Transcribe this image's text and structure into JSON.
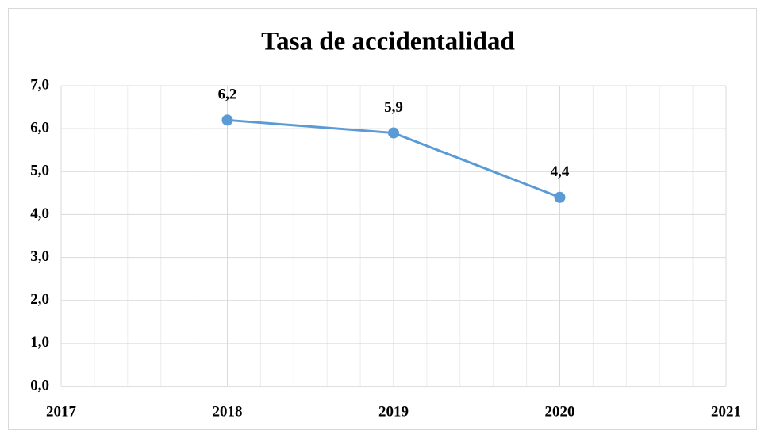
{
  "chart_data": {
    "type": "line",
    "title": "Tasa de accidentalidad",
    "x": [
      2018,
      2019,
      2020
    ],
    "series": [
      {
        "name": "Tasa de accidentalidad",
        "color": "#5b9bd5",
        "values": [
          6.2,
          5.9,
          4.4
        ],
        "value_labels": [
          "6,2",
          "5,9",
          "4,4"
        ]
      }
    ],
    "xlim": [
      2017,
      2021
    ],
    "xticks": [
      2017,
      2018,
      2019,
      2020,
      2021
    ],
    "xminorticks": [
      2017.2,
      2017.4,
      2017.6,
      2017.8,
      2018.2,
      2018.4,
      2018.6,
      2018.8,
      2019.2,
      2019.4,
      2019.6,
      2019.8,
      2020.2,
      2020.4,
      2020.6,
      2020.8
    ],
    "ylim": [
      0,
      7
    ],
    "yticks": [
      {
        "value": 0,
        "label": "0,0"
      },
      {
        "value": 1,
        "label": "1,0"
      },
      {
        "value": 2,
        "label": "2,0"
      },
      {
        "value": 3,
        "label": "3,0"
      },
      {
        "value": 4,
        "label": "4,0"
      },
      {
        "value": 5,
        "label": "5,0"
      },
      {
        "value": 6,
        "label": "6,0"
      },
      {
        "value": 7,
        "label": "7,0"
      }
    ],
    "grid": true
  }
}
